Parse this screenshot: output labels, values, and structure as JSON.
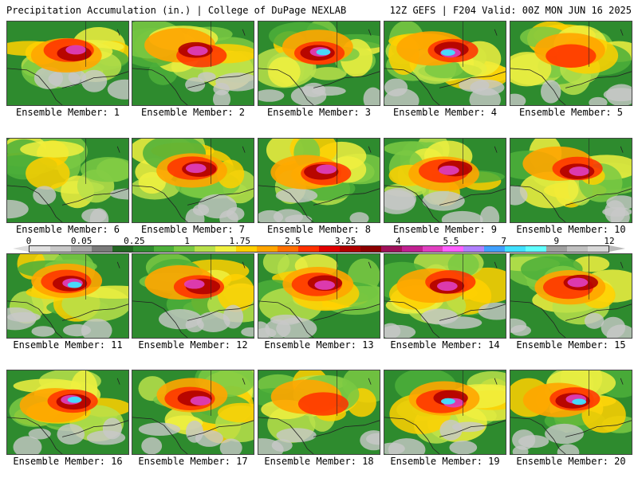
{
  "header": {
    "left": "Precipitation Accumulation (in.) | College of DuPage NEXLAB",
    "right": "12Z GEFS | F204 Valid: 00Z MON JUN 16 2025"
  },
  "colorbar": {
    "labels": [
      "0",
      "0.05",
      "0.25",
      "1",
      "1.75",
      "2.5",
      "3.25",
      "4",
      "5.5",
      "7",
      "9",
      "12"
    ],
    "colors": [
      "#e0e0e0",
      "#c8c8c8",
      "#a8a8a8",
      "#7a7a7a",
      "#226622",
      "#2e8b2e",
      "#4caf3a",
      "#7ac943",
      "#b8e04a",
      "#f0f040",
      "#ffd000",
      "#ffa500",
      "#ff7000",
      "#ff3000",
      "#e00000",
      "#b00000",
      "#8b0000",
      "#a0105a",
      "#c02090",
      "#e040c0",
      "#ff60ff",
      "#b080ff",
      "#40a0ff",
      "#40e0ff",
      "#60ffff",
      "#a0a0a0",
      "#c0c0c0",
      "#d8d8d8"
    ]
  },
  "members": [
    {
      "label": "Ensemble Member: 1",
      "intensity": 2
    },
    {
      "label": "Ensemble Member: 2",
      "intensity": 2
    },
    {
      "label": "Ensemble Member: 3",
      "intensity": 3
    },
    {
      "label": "Ensemble Member: 4",
      "intensity": 3
    },
    {
      "label": "Ensemble Member: 5",
      "intensity": 1
    },
    {
      "label": "Ensemble Member: 6",
      "intensity": 0
    },
    {
      "label": "Ensemble Member: 7",
      "intensity": 2
    },
    {
      "label": "Ensemble Member: 8",
      "intensity": 2
    },
    {
      "label": "Ensemble Member: 9",
      "intensity": 2
    },
    {
      "label": "Ensemble Member: 10",
      "intensity": 2
    },
    {
      "label": "Ensemble Member: 11",
      "intensity": 3
    },
    {
      "label": "Ensemble Member: 12",
      "intensity": 2
    },
    {
      "label": "Ensemble Member: 13",
      "intensity": 2
    },
    {
      "label": "Ensemble Member: 14",
      "intensity": 2
    },
    {
      "label": "Ensemble Member: 15",
      "intensity": 2
    },
    {
      "label": "Ensemble Member: 16",
      "intensity": 3
    },
    {
      "label": "Ensemble Member: 17",
      "intensity": 2
    },
    {
      "label": "Ensemble Member: 18",
      "intensity": 1
    },
    {
      "label": "Ensemble Member: 19",
      "intensity": 3
    },
    {
      "label": "Ensemble Member: 20",
      "intensity": 3
    }
  ]
}
